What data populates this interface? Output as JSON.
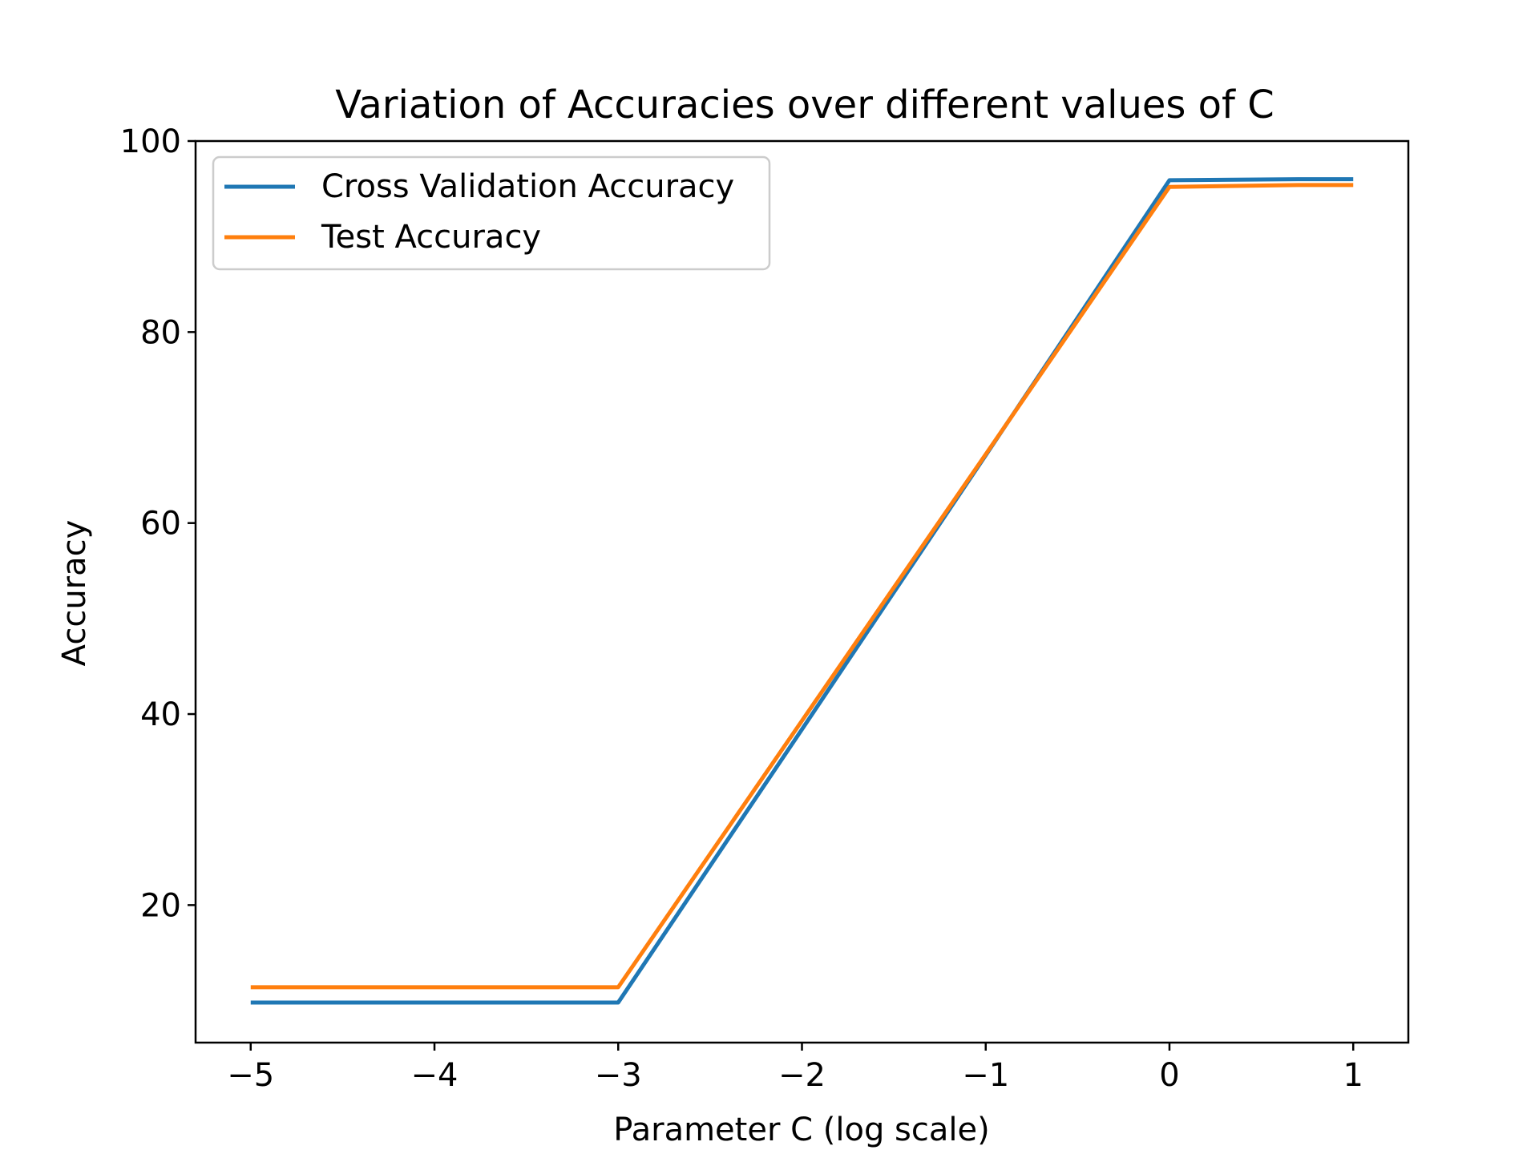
{
  "chart_data": {
    "type": "line",
    "title": "Variation of Accuracies over different values of C",
    "xlabel": "Parameter C (log scale)",
    "ylabel": "Accuracy",
    "x": [
      -5,
      -4,
      -3,
      -2,
      -1,
      0,
      0.7,
      1
    ],
    "xlim": [
      -5.3,
      1.3
    ],
    "ylim": [
      5.6,
      100.0
    ],
    "xticks": [
      -5,
      -4,
      -3,
      -2,
      -1,
      0,
      1
    ],
    "xtick_labels": [
      "−5",
      "−4",
      "−3",
      "−2",
      "−1",
      "0",
      "1"
    ],
    "yticks": [
      20,
      40,
      60,
      80,
      100
    ],
    "ytick_labels": [
      "20",
      "40",
      "60",
      "80",
      "100"
    ],
    "grid": false,
    "legend_position": "top-left",
    "series": [
      {
        "name": "Cross Validation Accuracy",
        "color": "#1f77b4",
        "values": [
          9.8,
          9.8,
          9.8,
          38.4,
          67.1,
          95.9,
          96.0,
          96.0
        ]
      },
      {
        "name": "Test Accuracy",
        "color": "#ff7f0e",
        "values": [
          11.4,
          11.4,
          11.4,
          39.3,
          67.2,
          95.2,
          95.4,
          95.4
        ]
      }
    ]
  }
}
